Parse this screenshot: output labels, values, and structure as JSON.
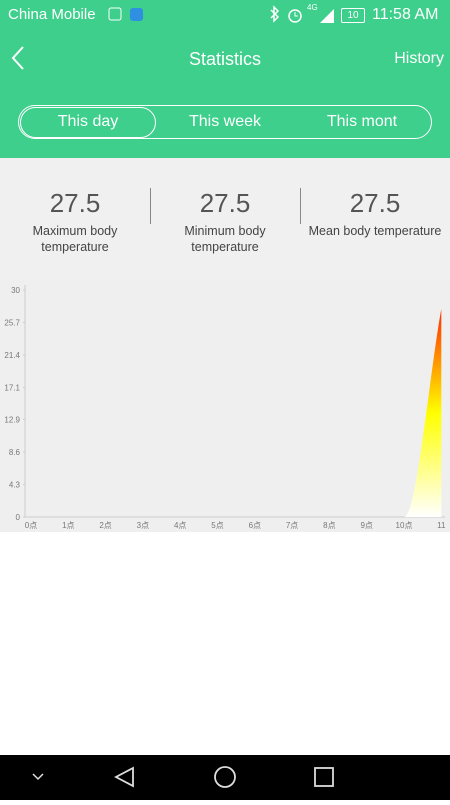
{
  "status_bar": {
    "carrier": "China Mobile",
    "network": "4G",
    "battery": 10,
    "time": "11:58 AM"
  },
  "header": {
    "title": "Statistics",
    "action": "History"
  },
  "tabs": [
    "This day",
    "This week",
    "This mont"
  ],
  "stats": [
    {
      "value": 27.5,
      "label": "Maximum body temperature"
    },
    {
      "value": 27.5,
      "label": "Minimum body temperature"
    },
    {
      "value": 27.5,
      "label": "Mean body temperature"
    }
  ],
  "chart_data": {
    "type": "area",
    "categories": [
      "0点",
      "1点",
      "2点",
      "3点",
      "4点",
      "5点",
      "6点",
      "7点",
      "8点",
      "9点",
      "10点",
      "11"
    ],
    "values": [
      0,
      0,
      0,
      0,
      0,
      0,
      0,
      0,
      0,
      0,
      0,
      27.5
    ],
    "colors": [
      "#ffffff",
      "#ffff00",
      "#ff2a00"
    ],
    "ylim": [
      0,
      30
    ],
    "yticks": [
      0,
      4.3,
      8.6,
      12.9,
      17.1,
      21.4,
      25.7,
      30
    ]
  }
}
